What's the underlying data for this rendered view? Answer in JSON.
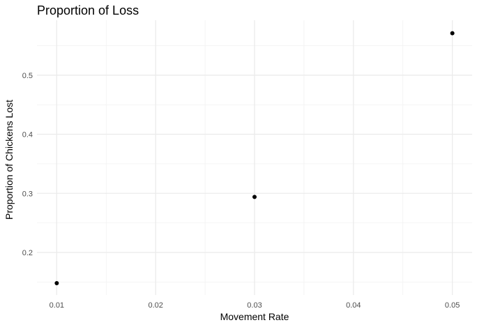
{
  "chart_data": {
    "type": "scatter",
    "title": "Proportion of Loss",
    "xlabel": "Movement Rate",
    "ylabel": "Proportion of Chickens Lost",
    "x": [
      0.01,
      0.03,
      0.05
    ],
    "y": [
      0.148,
      0.294,
      0.571
    ],
    "xlim": [
      0.008,
      0.052
    ],
    "ylim": [
      0.128,
      0.593
    ],
    "x_ticks": [
      0.01,
      0.02,
      0.03,
      0.04,
      0.05
    ],
    "x_tick_labels": [
      "0.01",
      "0.02",
      "0.03",
      "0.04",
      "0.05"
    ],
    "y_ticks": [
      0.2,
      0.3,
      0.4,
      0.5
    ],
    "y_tick_labels": [
      "0.2",
      "0.3",
      "0.4",
      "0.5"
    ],
    "grid": true,
    "background": "#ffffff",
    "grid_major_color": "#ebebeb",
    "grid_minor_color": "#f2f2f2",
    "point_color": "#000000"
  }
}
